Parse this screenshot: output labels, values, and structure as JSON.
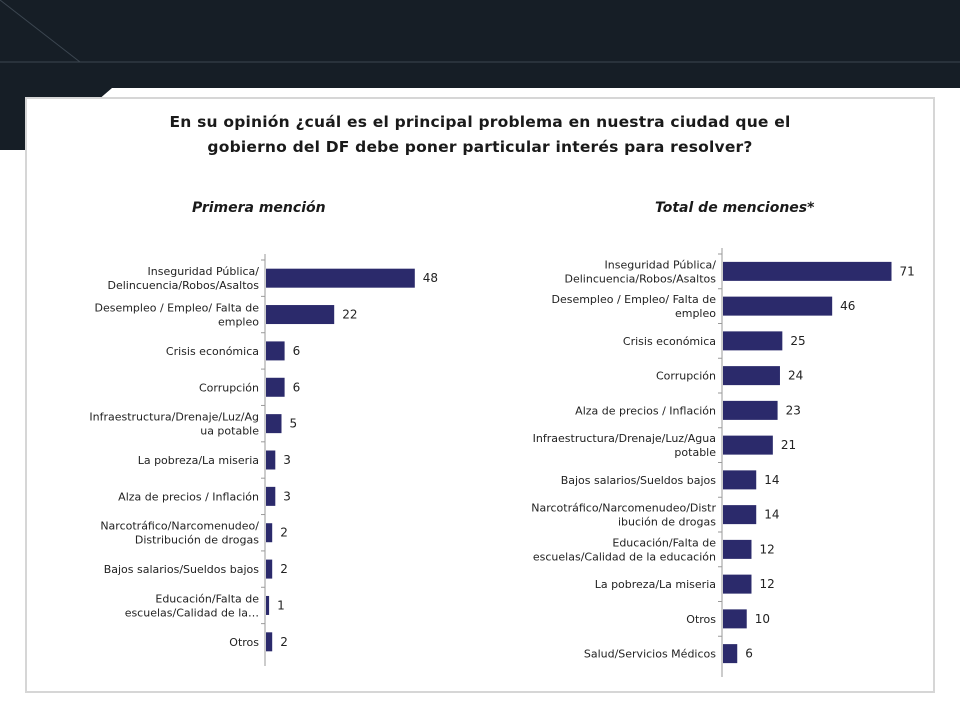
{
  "question": {
    "line1": "En su opinión ¿cuál es el principal problema en nuestra ciudad que el",
    "line2": "gobierno del DF debe poner particular interés para resolver?"
  },
  "colors": {
    "bar": "#2b2a6b",
    "banner": "#161e26",
    "axis": "#9a9a9a"
  },
  "chart_data": [
    {
      "type": "bar",
      "orientation": "horizontal",
      "title": "Primera mención",
      "categories": [
        "Inseguridad Pública/ Delincuencia/Robos/Asaltos",
        "Desempleo / Empleo/ Falta de empleo",
        "Crisis económica",
        "Corrupción",
        "Infraestructura/Drenaje/Luz/Agua potable",
        "La pobreza/La miseria",
        "Alza de precios / Inflación",
        "Narcotráfico/Narcomenudeo/ Distribución de drogas",
        "Bajos salarios/Sueldos bajos",
        "Educación/Falta de escuelas/Calidad de la…",
        "Otros"
      ],
      "label_lines": [
        [
          "Inseguridad Pública/",
          "Delincuencia/Robos/Asaltos"
        ],
        [
          "Desempleo / Empleo/ Falta de",
          "empleo"
        ],
        [
          "Crisis económica"
        ],
        [
          "Corrupción"
        ],
        [
          "Infraestructura/Drenaje/Luz/Ag",
          "ua potable"
        ],
        [
          "La pobreza/La miseria"
        ],
        [
          "Alza de precios / Inflación"
        ],
        [
          "Narcotráfico/Narcomenudeo/",
          "Distribución de drogas"
        ],
        [
          "Bajos salarios/Sueldos bajos"
        ],
        [
          "Educación/Falta de",
          "escuelas/Calidad de la…"
        ],
        [
          "Otros"
        ]
      ],
      "values": [
        48,
        22,
        6,
        6,
        5,
        3,
        3,
        2,
        2,
        1,
        2
      ],
      "xlim": [
        0,
        50
      ]
    },
    {
      "type": "bar",
      "orientation": "horizontal",
      "title": "Total de menciones*",
      "categories": [
        "Inseguridad Pública/ Delincuencia/Robos/Asaltos",
        "Desempleo / Empleo/ Falta de empleo",
        "Crisis económica",
        "Corrupción",
        "Alza de precios / Inflación",
        "Infraestructura/Drenaje/Luz/Agua potable",
        "Bajos salarios/Sueldos bajos",
        "Narcotráfico/Narcomenudeo/Distribución de drogas",
        "Educación/Falta de escuelas/Calidad de la educación",
        "La pobreza/La miseria",
        "Otros",
        "Salud/Servicios Médicos"
      ],
      "label_lines": [
        [
          "Inseguridad Pública/",
          "Delincuencia/Robos/Asaltos"
        ],
        [
          "Desempleo / Empleo/ Falta de",
          "empleo"
        ],
        [
          "Crisis económica"
        ],
        [
          "Corrupción"
        ],
        [
          "Alza de precios / Inflación"
        ],
        [
          "Infraestructura/Drenaje/Luz/Agua",
          "potable"
        ],
        [
          "Bajos salarios/Sueldos bajos"
        ],
        [
          "Narcotráfico/Narcomenudeo/Distr",
          "ibución de drogas"
        ],
        [
          "Educación/Falta de",
          "escuelas/Calidad de la educación"
        ],
        [
          "La pobreza/La miseria"
        ],
        [
          "Otros"
        ],
        [
          "Salud/Servicios Médicos"
        ]
      ],
      "values": [
        71,
        46,
        25,
        24,
        23,
        21,
        14,
        14,
        12,
        12,
        10,
        6
      ],
      "xlim": [
        0,
        75
      ]
    }
  ]
}
